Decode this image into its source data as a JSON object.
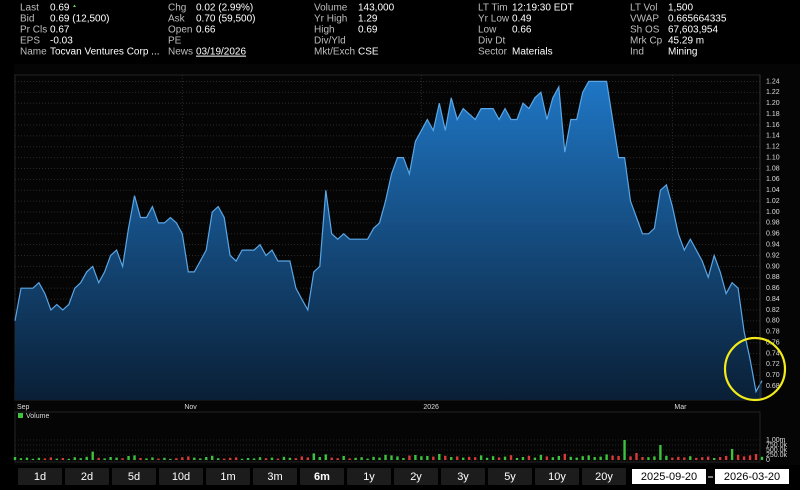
{
  "quote": {
    "rows": [
      [
        {
          "label": "Last",
          "value": "0.69"
        },
        {
          "label": "Chg",
          "value": "0.02 (2.99%)"
        },
        {
          "label": "Volume",
          "value": "143,000"
        },
        {
          "label": "LT Tim",
          "value": "12:19:30 EDT"
        },
        {
          "label": "LT Vol",
          "value": "1,500"
        }
      ],
      [
        {
          "label": "Bid",
          "value": "0.69 (12,500)"
        },
        {
          "label": "Ask",
          "value": "0.70 (59,500)"
        },
        {
          "label": "Yr High",
          "value": "1.29"
        },
        {
          "label": "Yr Low",
          "value": "0.49"
        },
        {
          "label": "VWAP",
          "value": "0.665664335"
        }
      ],
      [
        {
          "label": "Pr Cls",
          "value": "0.67"
        },
        {
          "label": "Open",
          "value": "0.66"
        },
        {
          "label": "High",
          "value": "0.69"
        },
        {
          "label": "Low",
          "value": "0.66"
        },
        {
          "label": "Sh OS",
          "value": "67,603,954"
        }
      ],
      [
        {
          "label": "EPS",
          "value": "-0.03"
        },
        {
          "label": "PE"
        },
        {
          "label": "Div/Yld"
        },
        {
          "label": "Div Dt"
        },
        {
          "label": "Mrk Cp",
          "value": "45.29 m"
        }
      ],
      [
        {
          "label": "Name",
          "value": "Tocvan Ventures Corp ..."
        },
        {
          "label": "News",
          "value": "03/19/2026"
        },
        {
          "label": "Mkt/Exch",
          "value": "CSE"
        },
        {
          "label": "Sector",
          "value": "Materials"
        },
        {
          "label": "Ind",
          "value": "Mining"
        }
      ]
    ],
    "positive_color": "#5fd35f"
  },
  "chart_data": [
    {
      "type": "area",
      "color": "#5aa6e6",
      "fill": "#1b6bb4",
      "grid": true,
      "values": [
        0.8,
        0.86,
        0.86,
        0.86,
        0.87,
        0.85,
        0.82,
        0.83,
        0.82,
        0.83,
        0.86,
        0.87,
        0.89,
        0.9,
        0.87,
        0.89,
        0.92,
        0.93,
        0.9,
        0.97,
        1.03,
        0.99,
        0.99,
        1.01,
        0.98,
        0.98,
        0.99,
        0.98,
        0.96,
        0.89,
        0.89,
        0.91,
        0.93,
        1.0,
        1.01,
        0.99,
        0.92,
        0.91,
        0.93,
        0.93,
        0.93,
        0.94,
        0.92,
        0.93,
        0.91,
        0.91,
        0.91,
        0.86,
        0.84,
        0.82,
        0.89,
        0.9,
        1.04,
        0.96,
        0.95,
        0.96,
        0.95,
        0.95,
        0.95,
        0.95,
        0.97,
        0.98,
        1.02,
        1.07,
        1.1,
        1.1,
        1.07,
        1.13,
        1.15,
        1.17,
        1.15,
        1.2,
        1.15,
        1.21,
        1.17,
        1.19,
        1.18,
        1.17,
        1.19,
        1.19,
        1.19,
        1.17,
        1.19,
        1.17,
        1.17,
        1.2,
        1.19,
        1.21,
        1.22,
        1.17,
        1.21,
        1.23,
        1.11,
        1.17,
        1.17,
        1.22,
        1.24,
        1.24,
        1.24,
        1.24,
        1.17,
        1.1,
        1.1,
        1.02,
        0.99,
        0.96,
        0.96,
        0.97,
        1.04,
        1.05,
        1.01,
        0.96,
        0.93,
        0.95,
        0.93,
        0.91,
        0.88,
        0.92,
        0.89,
        0.85,
        0.87,
        0.86,
        0.78,
        0.73,
        0.67,
        0.69
      ],
      "xlim": [
        0,
        125
      ],
      "xticks": [
        {
          "value": 0,
          "label": "Sep"
        },
        {
          "value": 28,
          "label": "Nov"
        },
        {
          "value": 68,
          "label": "2026"
        },
        {
          "value": 110,
          "label": "Mar"
        }
      ],
      "ylim": [
        0.66,
        1.25
      ],
      "yticks": [
        0.68,
        {
          "value": 0.7,
          "label": "0.70"
        },
        0.72,
        0.74,
        0.76,
        0.78,
        {
          "value": 0.8,
          "label": "0.80"
        },
        0.82,
        0.84,
        0.86,
        0.88,
        {
          "value": 0.9,
          "label": "0.90"
        },
        0.92,
        0.94,
        0.96,
        0.98,
        {
          "value": 1,
          "label": "1.00"
        },
        1.02,
        1.04,
        1.06,
        1.08,
        {
          "value": 1.1,
          "label": "1.10"
        },
        1.12,
        1.14,
        1.16,
        1.18,
        {
          "value": 1.2,
          "label": "1.20"
        },
        1.22,
        1.24
      ]
    },
    {
      "type": "bar",
      "title": "Volume",
      "up_color": "#3cc23c",
      "down_color": "#d83a3a",
      "values": [
        150000,
        90000,
        120000,
        60000,
        110000,
        80000,
        130000,
        70000,
        100000,
        60000,
        140000,
        90000,
        160000,
        420000,
        110000,
        80000,
        150000,
        120000,
        90000,
        200000,
        230000,
        100000,
        80000,
        130000,
        70000,
        110000,
        60000,
        90000,
        140000,
        180000,
        120000,
        80000,
        150000,
        210000,
        90000,
        70000,
        110000,
        130000,
        60000,
        100000,
        80000,
        140000,
        90000,
        120000,
        70000,
        160000,
        110000,
        90000,
        180000,
        130000,
        330000,
        150000,
        280000,
        120000,
        90000,
        200000,
        80000,
        110000,
        140000,
        70000,
        160000,
        120000,
        260000,
        230000,
        180000,
        100000,
        220000,
        250000,
        190000,
        200000,
        170000,
        300000,
        210000,
        150000,
        180000,
        120000,
        160000,
        140000,
        230000,
        110000,
        190000,
        130000,
        170000,
        240000,
        100000,
        150000,
        210000,
        120000,
        260000,
        180000,
        140000,
        200000,
        310000,
        160000,
        120000,
        190000,
        230000,
        150000,
        170000,
        280000,
        220000,
        200000,
        1000000,
        180000,
        350000,
        150000,
        140000,
        180000,
        750000,
        210000,
        120000,
        160000,
        130000,
        190000,
        110000,
        140000,
        170000,
        100000,
        150000,
        200000,
        550000,
        260000,
        180000,
        230000,
        300000,
        160000
      ],
      "ylim": [
        0,
        1000000
      ],
      "yticks": [
        0,
        {
          "value": 250000,
          "label": "250.0k"
        },
        {
          "value": 500000,
          "label": "500.0k"
        },
        {
          "value": 750000,
          "label": "750.0k"
        },
        {
          "value": 1000000,
          "label": "1.00m"
        }
      ]
    }
  ],
  "toolbar": {
    "ranges": [
      "1d",
      "2d",
      "5d",
      "10d",
      "1m",
      "3m",
      "6m",
      "1y",
      "2y",
      "3y",
      "5y",
      "10y",
      "20y"
    ],
    "selected": 6,
    "selected_color": "#f0b400",
    "start_date": "2025-09-20",
    "end_date": "2026-03-20"
  }
}
